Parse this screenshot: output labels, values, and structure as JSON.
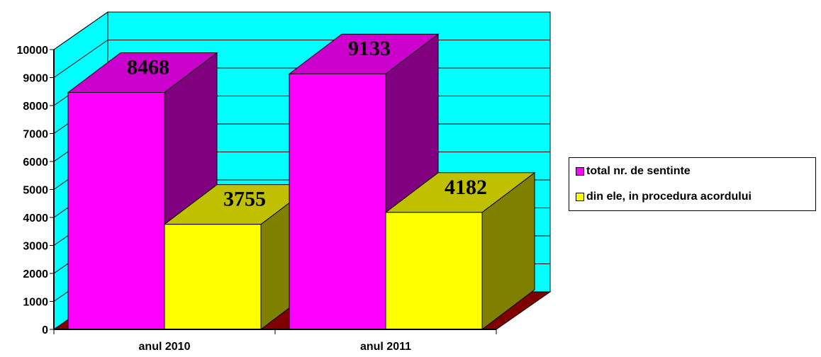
{
  "chart_data": {
    "type": "bar",
    "categories": [
      "anul 2010",
      "anul 2011"
    ],
    "series": [
      {
        "name": "total nr. de sentinte",
        "values": [
          8468,
          9133
        ],
        "color": "#ff00ff",
        "top_color": "#cc00cc",
        "side_color": "#800080"
      },
      {
        "name": "din ele, in procedura acordului",
        "values": [
          3755,
          4182
        ],
        "color": "#ffff00",
        "top_color": "#c0c000",
        "side_color": "#808000"
      }
    ],
    "yticks": [
      "0",
      "1000",
      "2000",
      "3000",
      "4000",
      "5000",
      "6000",
      "7000",
      "8000",
      "9000",
      "10000"
    ],
    "ylim": [
      0,
      10000
    ],
    "grid": true,
    "legend_position": "right",
    "three_d": true,
    "colors": {
      "wall": "#00ffff",
      "floor": "#800000"
    }
  }
}
